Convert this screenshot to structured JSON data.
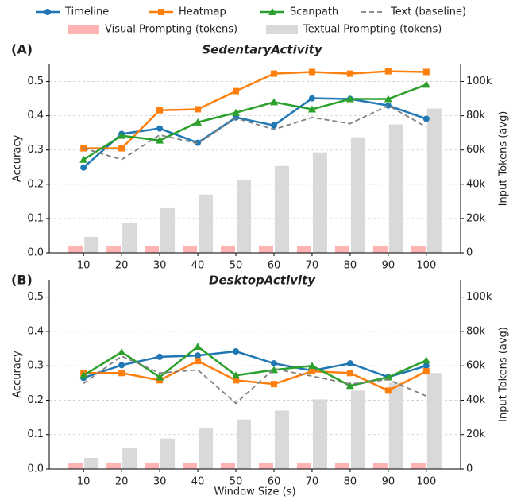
{
  "chart_data": [
    {
      "type": "line",
      "title": "SedentaryActivity",
      "panel_label": "(A)",
      "ylabel": "Accuracy",
      "y2label": "Input Tokens (avg)",
      "x": [
        10,
        20,
        30,
        40,
        50,
        60,
        70,
        80,
        90,
        100
      ],
      "xlim": [
        1,
        109
      ],
      "xticks": [
        10,
        20,
        30,
        40,
        50,
        60,
        70,
        80,
        90,
        100
      ],
      "ylim": [
        0,
        0.55
      ],
      "yticks": [
        {
          "value": 0,
          "label": "0.0"
        },
        0.1,
        0.2,
        0.3,
        0.4,
        0.5
      ],
      "y2lim": [
        0,
        110000
      ],
      "y2ticks": [
        0,
        {
          "value": 20000,
          "label": "20k"
        },
        {
          "value": 40000,
          "label": "40k"
        },
        {
          "value": 60000,
          "label": "60k"
        },
        {
          "value": 80000,
          "label": "80k"
        },
        {
          "value": 100000,
          "label": "100k"
        }
      ],
      "grid": true,
      "series": [
        {
          "name": "Timeline",
          "color": "#1f77b4",
          "marker": "circle",
          "values": [
            0.249,
            0.347,
            0.363,
            0.321,
            0.395,
            0.372,
            0.451,
            0.449,
            0.43,
            0.391
          ]
        },
        {
          "name": "Heatmap",
          "color": "#ff7f0e",
          "marker": "square",
          "values": [
            0.305,
            0.305,
            0.416,
            0.419,
            0.472,
            0.523,
            0.528,
            0.523,
            0.53,
            0.528
          ]
        },
        {
          "name": "Scanpath",
          "color": "#2ca02c",
          "marker": "triangle",
          "values": [
            0.272,
            0.342,
            0.328,
            0.381,
            0.409,
            0.44,
            0.419,
            0.449,
            0.449,
            0.491
          ]
        },
        {
          "name": "Text (baseline)",
          "color": "#808080",
          "marker": "dashed",
          "values": [
            0.305,
            0.272,
            0.344,
            0.319,
            0.393,
            0.36,
            0.395,
            0.377,
            0.43,
            0.367
          ]
        }
      ],
      "bars": [
        {
          "name": "Visual Prompting (tokens)",
          "color": "#ffb3b3",
          "axis": "y2",
          "values": [
            4200,
            4200,
            4200,
            4200,
            4200,
            4200,
            4200,
            4200,
            4200,
            4200
          ]
        },
        {
          "name": "Textual Prompting (tokens)",
          "color": "#d9d9d9",
          "axis": "y2",
          "values": [
            9300,
            17200,
            26000,
            34000,
            42300,
            50700,
            58600,
            67400,
            74900,
            84200
          ]
        }
      ]
    },
    {
      "type": "line",
      "title": "DesktopActivity",
      "panel_label": "(B)",
      "ylabel": "Accuracy",
      "y2label": "Input Tokens (avg)",
      "xlabel": "Window Size (s)",
      "x": [
        10,
        20,
        30,
        40,
        50,
        60,
        70,
        80,
        90,
        100
      ],
      "xlim": [
        1,
        109
      ],
      "xticks": [
        10,
        20,
        30,
        40,
        50,
        60,
        70,
        80,
        90,
        100
      ],
      "ylim": [
        0,
        0.55
      ],
      "yticks": [
        {
          "value": 0,
          "label": "0.0"
        },
        0.1,
        0.2,
        0.3,
        0.4,
        0.5
      ],
      "y2lim": [
        0,
        110000
      ],
      "y2ticks": [
        0,
        {
          "value": 20000,
          "label": "20k"
        },
        {
          "value": 40000,
          "label": "40k"
        },
        {
          "value": 60000,
          "label": "60k"
        },
        {
          "value": 80000,
          "label": "80k"
        },
        {
          "value": 100000,
          "label": "100k"
        }
      ],
      "grid": true,
      "series": [
        {
          "color": "#1f77b4",
          "marker": "circle",
          "values": [
            0.265,
            0.302,
            0.326,
            0.33,
            0.342,
            0.307,
            0.286,
            0.307,
            0.267,
            0.3
          ]
        },
        {
          "color": "#ff7f0e",
          "marker": "square",
          "values": [
            0.279,
            0.279,
            0.258,
            0.314,
            0.258,
            0.247,
            0.284,
            0.279,
            0.228,
            0.284
          ]
        },
        {
          "color": "#2ca02c",
          "marker": "triangle",
          "values": [
            0.272,
            0.34,
            0.267,
            0.356,
            0.272,
            0.288,
            0.3,
            0.242,
            0.267,
            0.316
          ]
        },
        {
          "color": "#808080",
          "marker": "dashed",
          "values": [
            0.249,
            0.328,
            0.279,
            0.288,
            0.191,
            0.291,
            0.27,
            0.247,
            0.26,
            0.212
          ]
        }
      ],
      "bars": [
        {
          "color": "#ffb3b3",
          "axis": "y2",
          "values": [
            3700,
            3700,
            3700,
            3700,
            3700,
            3700,
            3700,
            3700,
            3700,
            3700
          ]
        },
        {
          "color": "#d9d9d9",
          "axis": "y2",
          "values": [
            6500,
            12100,
            17700,
            23700,
            28800,
            34000,
            40500,
            45600,
            50200,
            55800
          ]
        }
      ]
    }
  ]
}
